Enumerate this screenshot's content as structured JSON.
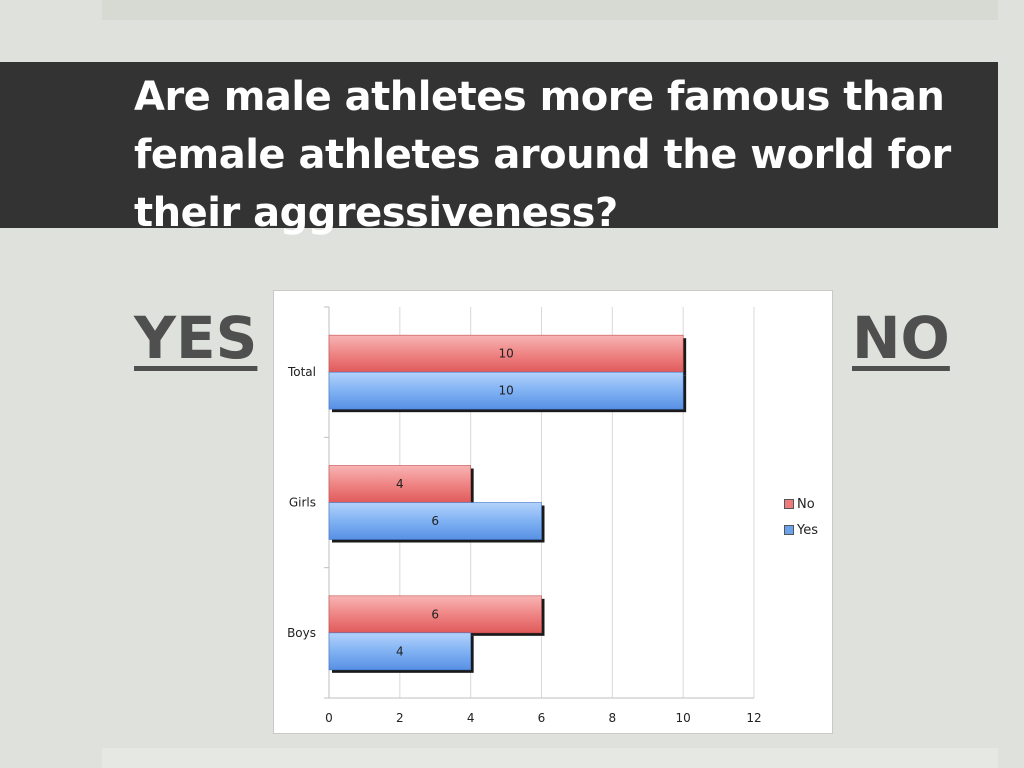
{
  "slide": {
    "title": "Are male athletes more famous than female athletes around the world for their aggressiveness?",
    "yes_label": "YES",
    "no_label": "NO"
  },
  "colors": {
    "background": "#dfe1dc",
    "title_bar": "#333333",
    "no_series": "#ee7b7b",
    "yes_series": "#6aa2ec"
  },
  "chart_data": {
    "type": "bar",
    "orientation": "horizontal",
    "categories": [
      "Total",
      "Girls",
      "Boys"
    ],
    "series": [
      {
        "name": "No",
        "values": [
          10,
          4,
          6
        ],
        "color": "#ee7b7b"
      },
      {
        "name": "Yes",
        "values": [
          10,
          6,
          4
        ],
        "color": "#6aa2ec"
      }
    ],
    "xlim": [
      0,
      12
    ],
    "x_ticks": [
      0,
      2,
      4,
      6,
      8,
      10,
      12
    ],
    "grid": true,
    "legend_position": "right",
    "data_labels": true
  }
}
